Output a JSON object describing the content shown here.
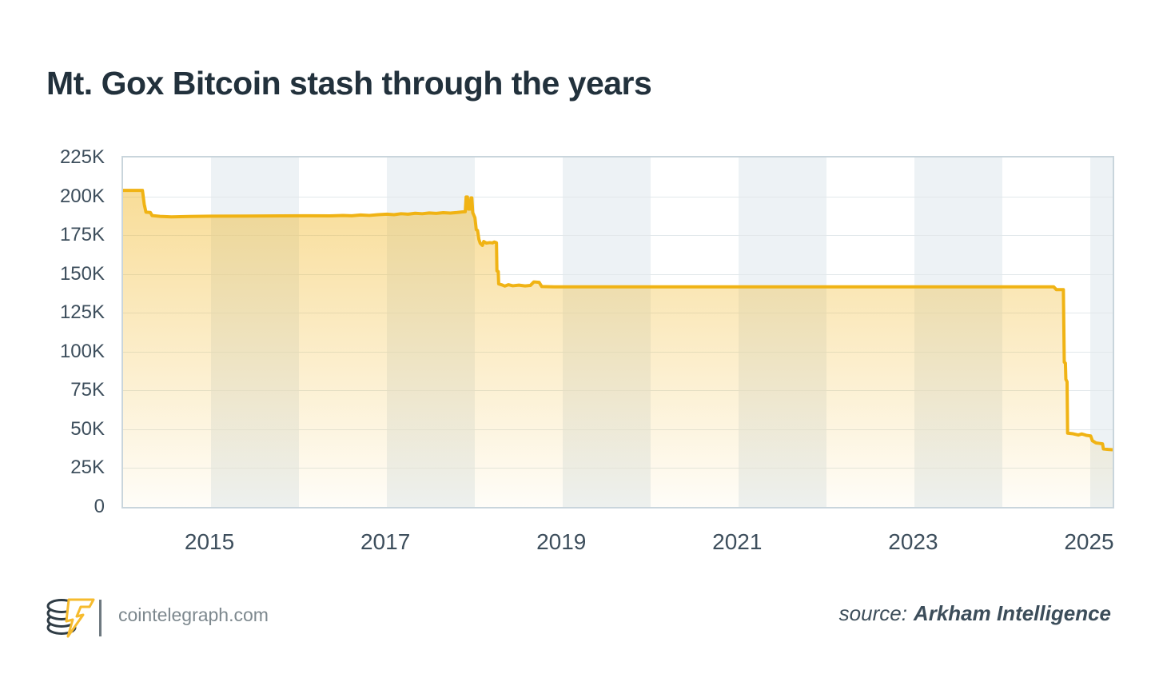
{
  "title": "Mt. Gox Bitcoin stash through the years",
  "footer": {
    "logo_icon": "cointelegraph-coin-stack-lightning-logo",
    "brand_url": "cointelegraph.com",
    "source_label": "source:",
    "source_value": "Arkham Intelligence"
  },
  "colors": {
    "line": "#f0b314",
    "fill_top": "rgba(240,179,26,0.45)",
    "fill_bottom": "rgba(240,179,26,0.03)",
    "band": "#edf2f5",
    "grid": "#e2e8eb",
    "plot_border": "#c9d5dc",
    "axis_text": "#3d4e5c",
    "title_text": "#22313c",
    "brand_text": "#7d888e",
    "logo_dark": "#2f3c45",
    "logo_yellow": "#f6bb2e"
  },
  "chart_data": {
    "type": "area",
    "title": "Mt. Gox Bitcoin stash through the years",
    "y_unit": "BTC (thousands)",
    "x_range": [
      2014.0,
      2025.25
    ],
    "ylim": [
      0,
      225
    ],
    "grid": "horizontal",
    "legend_position": "none",
    "y_ticks": [
      {
        "value": 0,
        "label": "0"
      },
      {
        "value": 25,
        "label": "25K"
      },
      {
        "value": 50,
        "label": "50K"
      },
      {
        "value": 75,
        "label": "75K"
      },
      {
        "value": 100,
        "label": "100K"
      },
      {
        "value": 125,
        "label": "125K"
      },
      {
        "value": 150,
        "label": "150K"
      },
      {
        "value": 175,
        "label": "175K"
      },
      {
        "value": 200,
        "label": "200K"
      },
      {
        "value": 225,
        "label": "225K"
      }
    ],
    "x_ticks": [
      {
        "value": 2015,
        "label": "2015"
      },
      {
        "value": 2017,
        "label": "2017"
      },
      {
        "value": 2019,
        "label": "2019"
      },
      {
        "value": 2021,
        "label": "2021"
      },
      {
        "value": 2023,
        "label": "2023"
      },
      {
        "value": 2025,
        "label": "2025"
      }
    ],
    "shaded_year_bands": [
      [
        2015,
        2016
      ],
      [
        2017,
        2018
      ],
      [
        2019,
        2020
      ],
      [
        2021,
        2022
      ],
      [
        2023,
        2024
      ],
      [
        2025,
        2026
      ]
    ],
    "series": [
      {
        "name": "Mt. Gox BTC holdings",
        "points": [
          [
            2014.0,
            203.8
          ],
          [
            2014.22,
            203.8
          ],
          [
            2014.24,
            195.0
          ],
          [
            2014.26,
            189.8
          ],
          [
            2014.31,
            189.6
          ],
          [
            2014.33,
            187.6
          ],
          [
            2014.42,
            187.1
          ],
          [
            2014.55,
            186.8
          ],
          [
            2014.75,
            187.0
          ],
          [
            2015.0,
            187.2
          ],
          [
            2015.4,
            187.3
          ],
          [
            2015.8,
            187.4
          ],
          [
            2016.1,
            187.5
          ],
          [
            2016.35,
            187.4
          ],
          [
            2016.5,
            187.7
          ],
          [
            2016.6,
            187.5
          ],
          [
            2016.7,
            188.0
          ],
          [
            2016.8,
            187.7
          ],
          [
            2016.9,
            188.2
          ],
          [
            2017.0,
            188.5
          ],
          [
            2017.08,
            188.2
          ],
          [
            2017.16,
            188.8
          ],
          [
            2017.24,
            188.5
          ],
          [
            2017.32,
            189.1
          ],
          [
            2017.4,
            188.8
          ],
          [
            2017.48,
            189.3
          ],
          [
            2017.56,
            189.0
          ],
          [
            2017.64,
            189.5
          ],
          [
            2017.72,
            189.2
          ],
          [
            2017.8,
            189.6
          ],
          [
            2017.86,
            190.0
          ],
          [
            2017.89,
            190.1
          ],
          [
            2017.9,
            199.6
          ],
          [
            2017.915,
            199.6
          ],
          [
            2017.925,
            191.8
          ],
          [
            2017.945,
            191.8
          ],
          [
            2017.955,
            199.0
          ],
          [
            2017.965,
            199.0
          ],
          [
            2017.975,
            189.5
          ],
          [
            2018.0,
            186.2
          ],
          [
            2018.015,
            178.5
          ],
          [
            2018.03,
            178.0
          ],
          [
            2018.045,
            172.3
          ],
          [
            2018.06,
            169.8
          ],
          [
            2018.085,
            168.4
          ],
          [
            2018.1,
            170.9
          ],
          [
            2018.13,
            169.9
          ],
          [
            2018.17,
            170.2
          ],
          [
            2018.2,
            170.0
          ],
          [
            2018.22,
            170.6
          ],
          [
            2018.245,
            170.1
          ],
          [
            2018.25,
            152.0
          ],
          [
            2018.265,
            151.6
          ],
          [
            2018.27,
            143.6
          ],
          [
            2018.31,
            142.9
          ],
          [
            2018.34,
            142.2
          ],
          [
            2018.38,
            143.1
          ],
          [
            2018.43,
            142.4
          ],
          [
            2018.5,
            142.8
          ],
          [
            2018.57,
            142.3
          ],
          [
            2018.63,
            142.6
          ],
          [
            2018.67,
            144.9
          ],
          [
            2018.73,
            144.6
          ],
          [
            2018.76,
            141.9
          ],
          [
            2018.9,
            141.7
          ],
          [
            2020.0,
            141.7
          ],
          [
            2022.0,
            141.7
          ],
          [
            2024.0,
            141.7
          ],
          [
            2024.58,
            141.7
          ],
          [
            2024.61,
            139.9
          ],
          [
            2024.69,
            139.9
          ],
          [
            2024.7,
            93.2
          ],
          [
            2024.713,
            92.6
          ],
          [
            2024.718,
            82.2
          ],
          [
            2024.732,
            80.6
          ],
          [
            2024.738,
            47.5
          ],
          [
            2024.8,
            47.1
          ],
          [
            2024.86,
            46.3
          ],
          [
            2024.9,
            47.0
          ],
          [
            2024.95,
            46.1
          ],
          [
            2025.0,
            45.7
          ],
          [
            2025.02,
            42.6
          ],
          [
            2025.06,
            41.2
          ],
          [
            2025.1,
            40.9
          ],
          [
            2025.135,
            40.6
          ],
          [
            2025.145,
            37.3
          ],
          [
            2025.2,
            37.0
          ],
          [
            2025.25,
            36.8
          ]
        ]
      }
    ]
  }
}
